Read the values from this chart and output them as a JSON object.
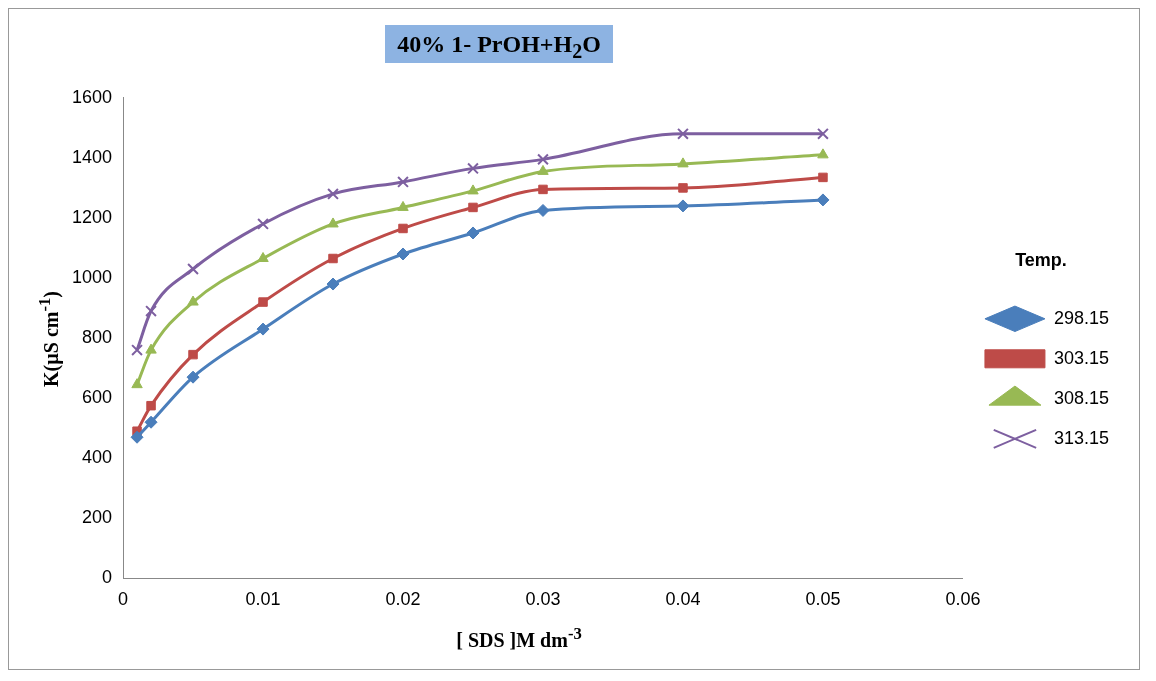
{
  "chart_data": {
    "type": "line",
    "title": "40% 1- PrOH+H$_{2}$O",
    "xlabel": "[ SDS ]M dm$^{-3}$",
    "ylabel": "K(µS cm$^{-1}$)",
    "legend_title": "Temp.",
    "legend": "right",
    "grid": false,
    "x": [
      0.001,
      0.002,
      0.005,
      0.01,
      0.015,
      0.02,
      0.025,
      0.03,
      0.04,
      0.05
    ],
    "xlim": [
      0,
      0.06
    ],
    "xticks": [
      0,
      0.01,
      0.02,
      0.03,
      0.04,
      0.05,
      0.06
    ],
    "ylim": [
      0,
      1600
    ],
    "yticks": [
      0,
      200,
      400,
      600,
      800,
      1000,
      1200,
      1400,
      1600
    ],
    "series": [
      {
        "name": "298.15",
        "color": "#4a7ebb",
        "marker": "diamond",
        "values": [
          470,
          520,
          670,
          830,
          980,
          1080,
          1150,
          1225,
          1240,
          1260
        ]
      },
      {
        "name": "303.15",
        "color": "#be4b48",
        "marker": "square",
        "values": [
          490,
          575,
          745,
          920,
          1065,
          1165,
          1235,
          1295,
          1300,
          1335
        ]
      },
      {
        "name": "308.15",
        "color": "#98b954",
        "marker": "triangle",
        "values": [
          645,
          760,
          920,
          1065,
          1180,
          1235,
          1290,
          1355,
          1380,
          1410
        ]
      },
      {
        "name": "313.15",
        "color": "#7d5fa0",
        "marker": "cross",
        "values": [
          760,
          890,
          1030,
          1180,
          1280,
          1320,
          1365,
          1395,
          1480,
          1480
        ]
      }
    ]
  }
}
